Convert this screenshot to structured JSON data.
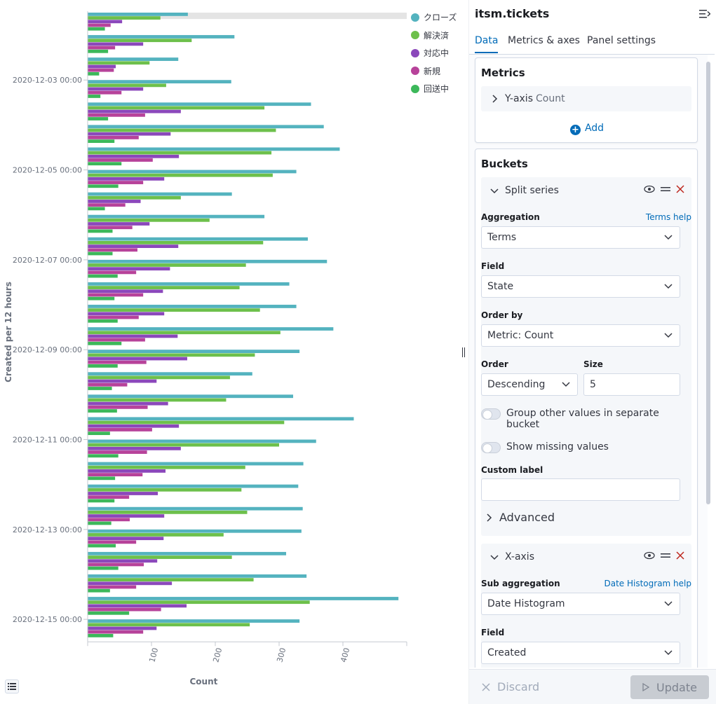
{
  "chart_data": {
    "type": "bar",
    "orientation": "horizontal",
    "xlabel": "Count",
    "ylabel": "Created per 12 hours",
    "xlim": [
      0,
      500
    ],
    "x_ticks": [
      100,
      200,
      300,
      400
    ],
    "y_tick_labels": [
      "2020-12-03 00:00",
      "2020-12-05 00:00",
      "2020-12-07 00:00",
      "2020-12-09 00:00",
      "2020-12-11 00:00",
      "2020-12-13 00:00",
      "2020-12-15 00:00"
    ],
    "y_tick_group_index": [
      3,
      7,
      11,
      15,
      19,
      23,
      27
    ],
    "legend_position": "top-right",
    "series": [
      {
        "name": "クローズ",
        "color": "#54b3bf",
        "values": [
          157,
          230,
          142,
          225,
          350,
          370,
          395,
          327,
          226,
          277,
          345,
          375,
          316,
          327,
          385,
          332,
          258,
          322,
          417,
          358,
          338,
          330,
          337,
          335,
          311,
          343,
          487,
          332
        ]
      },
      {
        "name": "解決済",
        "color": "#6dc04b",
        "values": [
          114,
          163,
          97,
          123,
          277,
          295,
          288,
          290,
          146,
          191,
          275,
          248,
          238,
          270,
          302,
          262,
          223,
          217,
          308,
          300,
          247,
          241,
          250,
          213,
          226,
          260,
          348,
          254
        ]
      },
      {
        "name": "対応中",
        "color": "#8b48bb",
        "values": [
          54,
          87,
          44,
          87,
          146,
          130,
          143,
          120,
          83,
          97,
          142,
          129,
          118,
          120,
          141,
          156,
          108,
          126,
          143,
          146,
          122,
          110,
          120,
          119,
          109,
          132,
          155,
          108
        ]
      },
      {
        "name": "新規",
        "color": "#b7429a",
        "values": [
          36,
          43,
          41,
          53,
          90,
          80,
          102,
          87,
          59,
          70,
          78,
          76,
          87,
          80,
          90,
          92,
          62,
          94,
          101,
          93,
          86,
          65,
          66,
          76,
          88,
          76,
          115,
          87
        ]
      },
      {
        "name": "回送中",
        "color": "#3cb85a",
        "values": [
          27,
          32,
          18,
          20,
          32,
          42,
          53,
          48,
          27,
          39,
          39,
          47,
          42,
          47,
          53,
          47,
          38,
          46,
          35,
          48,
          43,
          42,
          37,
          44,
          48,
          35,
          65,
          40
        ]
      }
    ]
  },
  "legend_button_icon": "list-icon",
  "panel": {
    "title": "itsm.tickets",
    "collapse_icon": "menu-collapse-icon",
    "tabs": [
      "Data",
      "Metrics & axes",
      "Panel settings"
    ],
    "metrics": {
      "title": "Metrics",
      "item_label": "Y-axis",
      "item_value": "Count",
      "add_label": "Add"
    },
    "buckets": {
      "title": "Buckets",
      "split": {
        "title": "Split series",
        "aggregation_label": "Aggregation",
        "aggregation_help": "Terms help",
        "aggregation_value": "Terms",
        "field_label": "Field",
        "field_value": "State",
        "order_by_label": "Order by",
        "order_by_value": "Metric: Count",
        "order_label": "Order",
        "order_value": "Descending",
        "size_label": "Size",
        "size_value": "5",
        "group_other_label": "Group other values in separate bucket",
        "show_missing_label": "Show missing values",
        "custom_label_label": "Custom label",
        "custom_label_value": "",
        "advanced_label": "Advanced"
      },
      "xaxis": {
        "title": "X-axis",
        "sub_agg_label": "Sub aggregation",
        "sub_agg_help": "Date Histogram help",
        "sub_agg_value": "Date Histogram",
        "field_label": "Field",
        "field_value": "Created"
      }
    },
    "footer": {
      "discard_label": "Discard",
      "update_label": "Update"
    }
  }
}
